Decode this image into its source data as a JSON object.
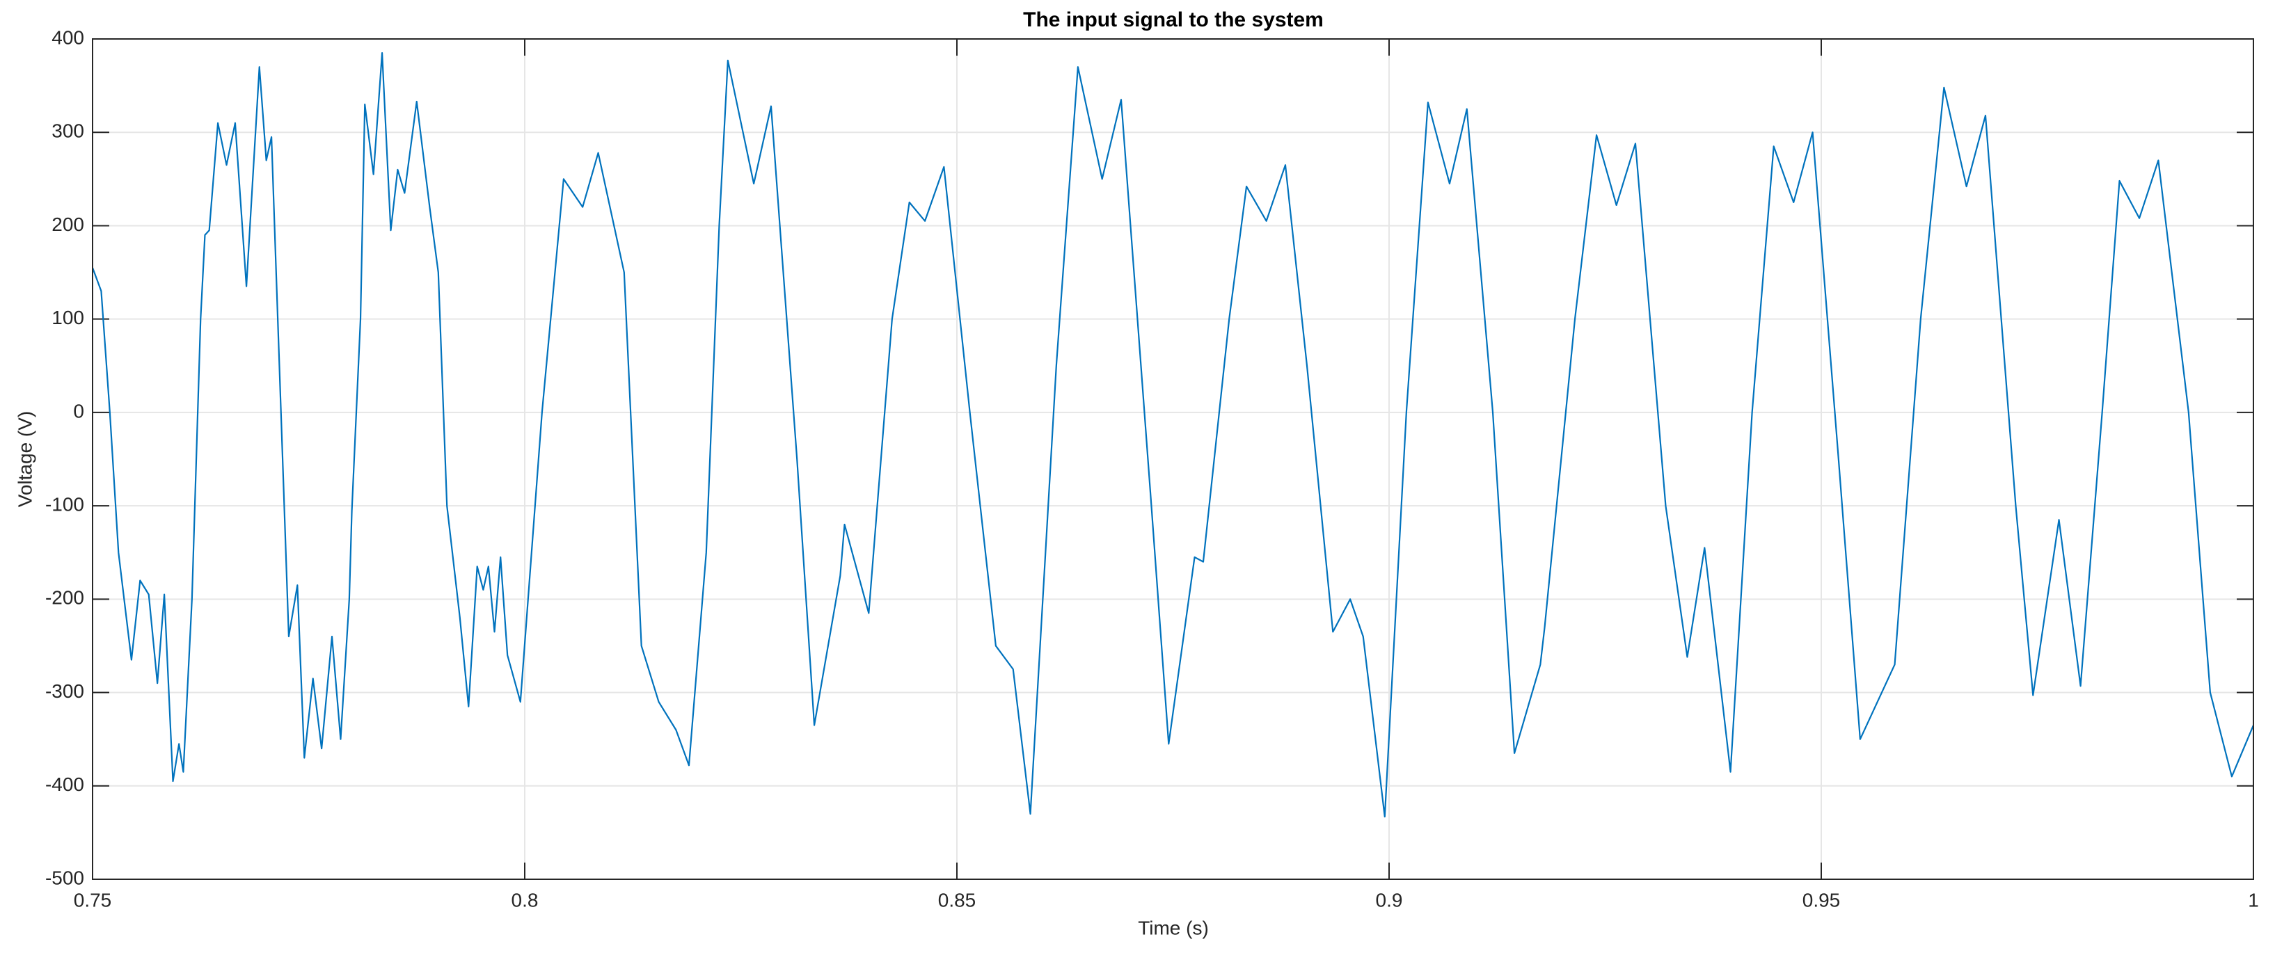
{
  "chart_data": {
    "type": "line",
    "title": "The input signal to the system",
    "x_label": "Time (s)",
    "y_label": "Voltage (V)",
    "xlim": [
      0.75,
      1
    ],
    "xticks": [
      0.75,
      0.8,
      0.85,
      0.9,
      0.95,
      1
    ],
    "ylim": [
      -500,
      400
    ],
    "yticks": [
      -500,
      -400,
      -300,
      -200,
      -100,
      0,
      100,
      200,
      300,
      400
    ],
    "grid": true,
    "series": [
      {
        "color": "#0072bd",
        "x": [
          0.75,
          0.751,
          0.752,
          0.753,
          0.7545,
          0.7555,
          0.7565,
          0.7575,
          0.7583,
          0.7593,
          0.76,
          0.7605,
          0.7615,
          0.7625,
          0.763,
          0.7635,
          0.7645,
          0.7655,
          0.7665,
          0.7678,
          0.7693,
          0.7701,
          0.7707,
          0.7718,
          0.7727,
          0.7737,
          0.7745,
          0.7755,
          0.7765,
          0.7777,
          0.7787,
          0.7797,
          0.78,
          0.781,
          0.7815,
          0.7825,
          0.7835,
          0.7845,
          0.7853,
          0.7861,
          0.7875,
          0.789,
          0.79,
          0.791,
          0.7925,
          0.7935,
          0.7945,
          0.7952,
          0.7958,
          0.7965,
          0.7972,
          0.798,
          0.7995,
          0.802,
          0.8045,
          0.8067,
          0.8085,
          0.8115,
          0.8135,
          0.8155,
          0.8175,
          0.819,
          0.821,
          0.8225,
          0.8235,
          0.8265,
          0.8285,
          0.8315,
          0.8335,
          0.8365,
          0.837,
          0.8398,
          0.8425,
          0.8445,
          0.8463,
          0.8485,
          0.8515,
          0.8545,
          0.8565,
          0.8585,
          0.8615,
          0.864,
          0.8668,
          0.869,
          0.8725,
          0.8745,
          0.8775,
          0.8785,
          0.8815,
          0.8835,
          0.8858,
          0.888,
          0.8905,
          0.8935,
          0.8955,
          0.897,
          0.8995,
          0.902,
          0.9045,
          0.907,
          0.909,
          0.912,
          0.9145,
          0.9175,
          0.918,
          0.9215,
          0.924,
          0.9263,
          0.9285,
          0.932,
          0.9345,
          0.9365,
          0.9395,
          0.942,
          0.9445,
          0.9468,
          0.949,
          0.952,
          0.9545,
          0.956,
          0.9585,
          0.9615,
          0.9642,
          0.9668,
          0.969,
          0.9725,
          0.9745,
          0.9775,
          0.98,
          0.9825,
          0.9845,
          0.9868,
          0.989,
          0.9925,
          0.995,
          0.9975,
          1.0
        ],
        "values": [
          155,
          130,
          0,
          -150,
          -265,
          -180,
          -195,
          -290,
          -195,
          -395,
          -355,
          -385,
          -200,
          100,
          190,
          195,
          310,
          265,
          310,
          135,
          370,
          270,
          295,
          0,
          -240,
          -185,
          -370,
          -285,
          -360,
          -240,
          -350,
          -200,
          -105,
          100,
          330,
          255,
          385,
          195,
          260,
          235,
          333,
          220,
          150,
          -100,
          -220,
          -315,
          -165,
          -190,
          -165,
          -235,
          -155,
          -260,
          -310,
          0,
          250,
          220,
          278,
          150,
          -250,
          -310,
          -340,
          -378,
          -150,
          200,
          377,
          245,
          328,
          -50,
          -335,
          -175,
          -120,
          -215,
          100,
          225,
          205,
          263,
          0,
          -250,
          -275,
          -430,
          50,
          370,
          250,
          335,
          -100,
          -355,
          -155,
          -160,
          100,
          242,
          205,
          265,
          50,
          -235,
          -200,
          -240,
          -433,
          0,
          332,
          245,
          325,
          0,
          -365,
          -270,
          -230,
          100,
          297,
          222,
          288,
          -100,
          -262,
          -145,
          -385,
          0,
          285,
          225,
          300,
          -50,
          -350,
          -320,
          -270,
          100,
          348,
          242,
          318,
          -100,
          -303,
          -115,
          -293,
          0,
          248,
          208,
          270,
          0,
          -300,
          -390,
          -335
        ]
      }
    ]
  }
}
